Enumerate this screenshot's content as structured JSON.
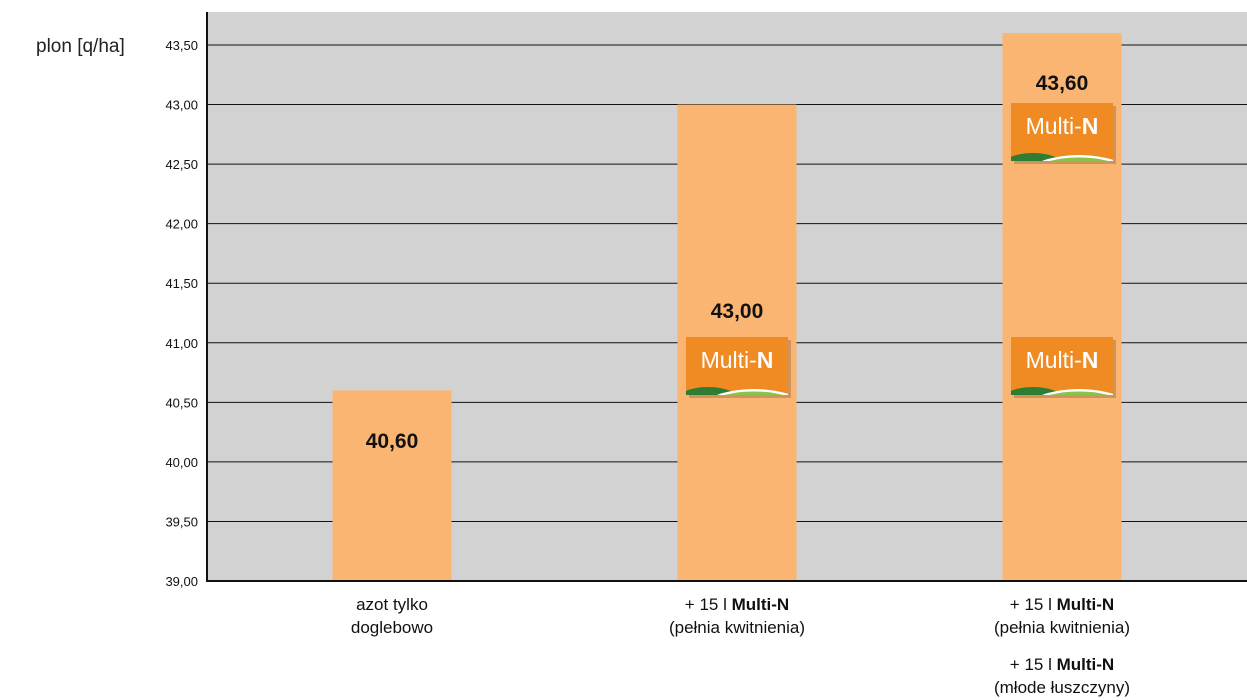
{
  "chart_data": {
    "type": "bar",
    "ylabel": "plon [q/ha]",
    "ylim": [
      39.0,
      43.5
    ],
    "yticks": [
      "39,00",
      "39,50",
      "40,00",
      "40,50",
      "41,00",
      "41,50",
      "42,00",
      "42,50",
      "43,00",
      "43,50"
    ],
    "grid": true,
    "categories": [
      {
        "lines": [
          [
            {
              "text": "azot tylko",
              "bold": false
            }
          ],
          [
            {
              "text": "doglebowo",
              "bold": false
            }
          ]
        ]
      },
      {
        "lines": [
          [
            {
              "text": "+ 15 l ",
              "bold": false
            },
            {
              "text": "Multi-N",
              "bold": true
            }
          ],
          [
            {
              "text": "(pełnia kwitnienia)",
              "bold": false
            }
          ]
        ]
      },
      {
        "lines": [
          [
            {
              "text": "+ 15 l ",
              "bold": false
            },
            {
              "text": "Multi-N",
              "bold": true
            }
          ],
          [
            {
              "text": "(pełnia kwitnienia)",
              "bold": false
            }
          ],
          [
            {
              "text": "+ 15 l ",
              "bold": false
            },
            {
              "text": "Multi-N",
              "bold": true
            }
          ],
          [
            {
              "text": "(młode łuszczyny)",
              "bold": false
            }
          ]
        ]
      }
    ],
    "values": [
      40.6,
      43.0,
      43.6
    ],
    "value_labels": [
      "40,60",
      "43,00",
      "43,60"
    ],
    "logo_counts": [
      0,
      1,
      2
    ],
    "logo_text": {
      "prefix": "Multi-",
      "strong": "N"
    },
    "colors": {
      "plot_bg": "#d2d2d3",
      "bar": "#fab572",
      "grid": "#111111",
      "logo_orange": "#f08a22",
      "logo_green_dark": "#2e7d32",
      "logo_green_light": "#8bc34a"
    }
  }
}
